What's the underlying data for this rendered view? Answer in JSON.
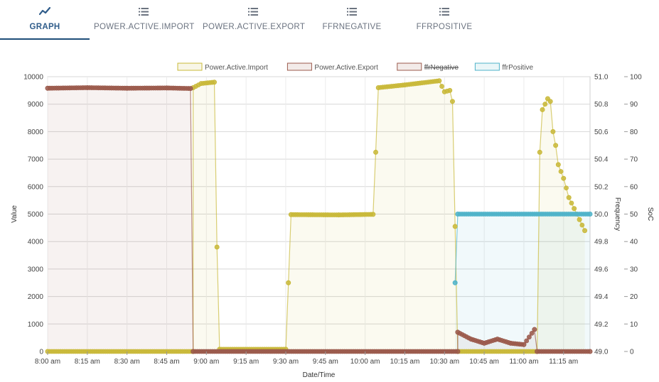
{
  "tabs": [
    {
      "label": "GRAPH",
      "icon": "line-chart-icon",
      "active": true
    },
    {
      "label": "POWER.ACTIVE.IMPORT",
      "icon": "list-icon",
      "active": false
    },
    {
      "label": "POWER.ACTIVE.EXPORT",
      "icon": "list-icon",
      "active": false
    },
    {
      "label": "FFRNEGATIVE",
      "icon": "list-icon",
      "active": false
    },
    {
      "label": "FFRPOSITIVE",
      "icon": "list-icon",
      "active": false
    }
  ],
  "colors": {
    "accent": "#1f4e79",
    "import": "#c9b93a",
    "export": "#9b5a4c",
    "ffrNegative": "#9b5a4c",
    "ffrPositive": "#4fb3c9",
    "grid": "#d7d7d7"
  },
  "chart_data": {
    "type": "line",
    "xlabel": "Date/Time",
    "ylabel": "Value",
    "y2label": "Frequency",
    "y3label": "SoC",
    "xlim": [
      "8:00 am",
      "11:25 am"
    ],
    "x_ticks": [
      "8:00 am",
      "8:15 am",
      "8:30 am",
      "8:45 am",
      "9:00 am",
      "9:15 am",
      "9:30 am",
      "9:45 am",
      "10:00 am",
      "10:15 am",
      "10:30 am",
      "10:45 am",
      "11:00 am",
      "11:15 am"
    ],
    "ylim": [
      0,
      10000
    ],
    "y_ticks": [
      "0",
      "1000",
      "2000",
      "3000",
      "4000",
      "5000",
      "6000",
      "7000",
      "8000",
      "9000",
      "10000"
    ],
    "y2lim": [
      49.0,
      51.0
    ],
    "y2_ticks": [
      "49.0",
      "49.2",
      "49.4",
      "49.6",
      "49.8",
      "50.0",
      "50.2",
      "50.4",
      "50.6",
      "50.8",
      "51.0"
    ],
    "y3lim": [
      0,
      100
    ],
    "y3_ticks": [
      "0",
      "10",
      "20",
      "30",
      "40",
      "50",
      "60",
      "70",
      "80",
      "90",
      "100"
    ],
    "grid": true,
    "legend_position": "top-center",
    "series": [
      {
        "name": "Power.Active.Import",
        "color": "#c9b93a",
        "hidden": false,
        "points": [
          [
            "8:00 am",
            0
          ],
          [
            "8:55 am",
            0
          ],
          [
            "8:55 am",
            9600
          ],
          [
            "8:58 am",
            9750
          ],
          [
            "9:03 am",
            9800
          ],
          [
            "9:04 am",
            3800
          ],
          [
            "9:05 am",
            80
          ],
          [
            "9:30 am",
            80
          ],
          [
            "9:31 am",
            2500
          ],
          [
            "9:32 am",
            4980
          ],
          [
            "9:50 am",
            4970
          ],
          [
            "10:03 am",
            4990
          ],
          [
            "10:04 am",
            7250
          ],
          [
            "10:05 am",
            9600
          ],
          [
            "10:15 am",
            9700
          ],
          [
            "10:28 am",
            9850
          ],
          [
            "10:30 am",
            9450
          ],
          [
            "10:32 am",
            9500
          ],
          [
            "10:33 am",
            9100
          ],
          [
            "10:34 am",
            4550
          ],
          [
            "10:35 am",
            0
          ],
          [
            "11:05 am",
            0
          ],
          [
            "11:06 am",
            7250
          ],
          [
            "11:07 am",
            8800
          ],
          [
            "11:09 am",
            9200
          ],
          [
            "11:10 am",
            9100
          ],
          [
            "11:11 am",
            8000
          ],
          [
            "11:12 am",
            7500
          ],
          [
            "11:13 am",
            6800
          ],
          [
            "11:15 am",
            6300
          ],
          [
            "11:17 am",
            5600
          ],
          [
            "11:19 am",
            5200
          ],
          [
            "11:21 am",
            4800
          ],
          [
            "11:23 am",
            4400
          ]
        ]
      },
      {
        "name": "Power.Active.Export",
        "color": "#9b5a4c",
        "hidden": false,
        "points": [
          [
            "8:00 am",
            9580
          ],
          [
            "8:15 am",
            9600
          ],
          [
            "8:30 am",
            9580
          ],
          [
            "8:45 am",
            9590
          ],
          [
            "8:54 am",
            9570
          ],
          [
            "8:55 am",
            0
          ],
          [
            "10:35 am",
            0
          ],
          [
            "10:35 am",
            700
          ],
          [
            "10:40 am",
            450
          ],
          [
            "10:45 am",
            300
          ],
          [
            "10:50 am",
            450
          ],
          [
            "10:55 am",
            300
          ],
          [
            "11:00 am",
            250
          ],
          [
            "11:04 am",
            800
          ],
          [
            "11:05 am",
            0
          ],
          [
            "11:25 am",
            0
          ]
        ]
      },
      {
        "name": "ffrNegative",
        "color": "#9b5a4c",
        "hidden": true,
        "points": []
      },
      {
        "name": "ffrPositive",
        "color": "#4fb3c9",
        "hidden": false,
        "points": [
          [
            "10:34 am",
            2500
          ],
          [
            "10:35 am",
            5000
          ],
          [
            "11:25 am",
            5000
          ]
        ]
      }
    ]
  }
}
